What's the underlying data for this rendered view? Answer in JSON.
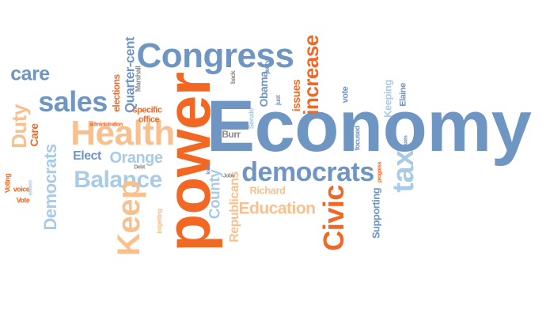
{
  "colors": {
    "blue": "#6f95c3",
    "light_blue": "#a9cbe6",
    "orange": "#f26722",
    "peach": "#f7c08d",
    "gray": "#8a8a8a",
    "background": "#ffffff"
  },
  "words": [
    {
      "text": "Economy",
      "color": "#6f95c3"
    },
    {
      "text": "power",
      "color": "#f26722"
    },
    {
      "text": "Congress",
      "color": "#6f95c3"
    },
    {
      "text": "Health",
      "color": "#f7c08d"
    },
    {
      "text": "sales",
      "color": "#6f95c3"
    },
    {
      "text": "democrats",
      "color": "#6f95c3"
    },
    {
      "text": "tax",
      "color": "#a9cbe6"
    },
    {
      "text": "Balance",
      "color": "#a9cbe6"
    },
    {
      "text": "Keep",
      "color": "#f7c08d"
    },
    {
      "text": "Civic",
      "color": "#f26722"
    },
    {
      "text": "increase",
      "color": "#f26722"
    },
    {
      "text": "care",
      "color": "#6f95c3"
    },
    {
      "text": "Duty",
      "color": "#f7c08d"
    },
    {
      "text": "Democrats",
      "color": "#a9cbe6"
    },
    {
      "text": "Education",
      "color": "#f7c08d"
    },
    {
      "text": "County",
      "color": "#a9cbe6"
    },
    {
      "text": "Orange",
      "color": "#a9cbe6"
    },
    {
      "text": "Quarter-cent",
      "color": "#6f95c3"
    },
    {
      "text": "Republicans",
      "color": "#f7c08d"
    },
    {
      "text": "Elect",
      "color": "#6f95c3"
    },
    {
      "text": "Care",
      "color": "#f26722"
    },
    {
      "text": "issues",
      "color": "#f26722"
    },
    {
      "text": "Obama",
      "color": "#6f95c3"
    },
    {
      "text": "elections",
      "color": "#f26722"
    },
    {
      "text": "Richard",
      "color": "#f7c08d"
    },
    {
      "text": "Supporting",
      "color": "#6f95c3"
    },
    {
      "text": "Keeping",
      "color": "#a9cbe6"
    },
    {
      "text": "Burr",
      "color": "#8a8a8a"
    },
    {
      "text": "vote",
      "color": "#6f95c3"
    },
    {
      "text": "Elaine",
      "color": "#6f95c3"
    },
    {
      "text": "specific",
      "color": "#f26722"
    },
    {
      "text": "office",
      "color": "#f26722"
    },
    {
      "text": "Marshall",
      "color": "#8a8a8a"
    },
    {
      "text": "Voting",
      "color": "#f26722"
    },
    {
      "text": "voice",
      "color": "#f26722"
    },
    {
      "text": "Vote",
      "color": "#f26722"
    },
    {
      "text": "focused",
      "color": "#6f95c3"
    },
    {
      "text": "Senate",
      "color": "#a9cbe6"
    },
    {
      "text": "party",
      "color": "#6f95c3"
    },
    {
      "text": "just",
      "color": "#6f95c3"
    },
    {
      "text": "back",
      "color": "#8a8a8a"
    },
    {
      "text": "administration",
      "color": "#f26722"
    },
    {
      "text": "in/getting",
      "color": "#f7c08d"
    },
    {
      "text": "local",
      "color": "#6f95c3"
    },
    {
      "text": "Debt",
      "color": "#8a8a8a"
    },
    {
      "text": "Jobs",
      "color": "#8a8a8a"
    },
    {
      "text": "reform",
      "color": "#a9cbe6"
    },
    {
      "text": "progress",
      "color": "#f26722"
    },
    {
      "text": "Taxes",
      "color": "#6f95c3"
    }
  ]
}
